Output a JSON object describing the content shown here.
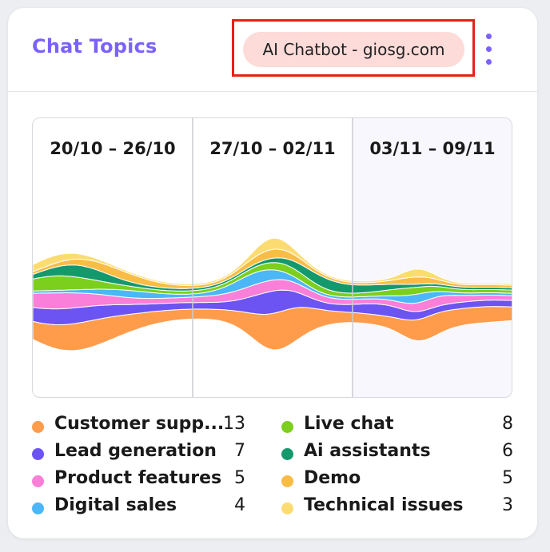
{
  "header": {
    "title": "Chat Topics",
    "source": "AI Chatbot - giosg.com",
    "menu_icon": "kebab-menu-icon"
  },
  "colors": {
    "accent": "#7b61ff",
    "highlight_frame": "#e62116",
    "pill_background": "#fcdbd9",
    "current_week_background": "#f7f7fd"
  },
  "chart_data": {
    "type": "area",
    "weeks": [
      "20/10 – 26/10",
      "27/10 – 02/11",
      "03/11 – 09/11"
    ],
    "highlighted_week": "03/11 – 09/11",
    "series": [
      {
        "name": "Customer supp...",
        "count": 13,
        "color": "#ff9c4c"
      },
      {
        "name": "Lead generation",
        "count": 7,
        "color": "#6b54f2"
      },
      {
        "name": "Product features",
        "count": 5,
        "color": "#f97fd8"
      },
      {
        "name": "Digital sales",
        "count": 4,
        "color": "#4bb7f7"
      },
      {
        "name": "Live chat",
        "count": 8,
        "color": "#7ccf1d"
      },
      {
        "name": "Ai assistants",
        "count": 6,
        "color": "#14996d"
      },
      {
        "name": "Demo",
        "count": 5,
        "color": "#f9bc45"
      },
      {
        "name": "Technical issues",
        "count": 3,
        "color": "#fcdc72"
      }
    ]
  }
}
